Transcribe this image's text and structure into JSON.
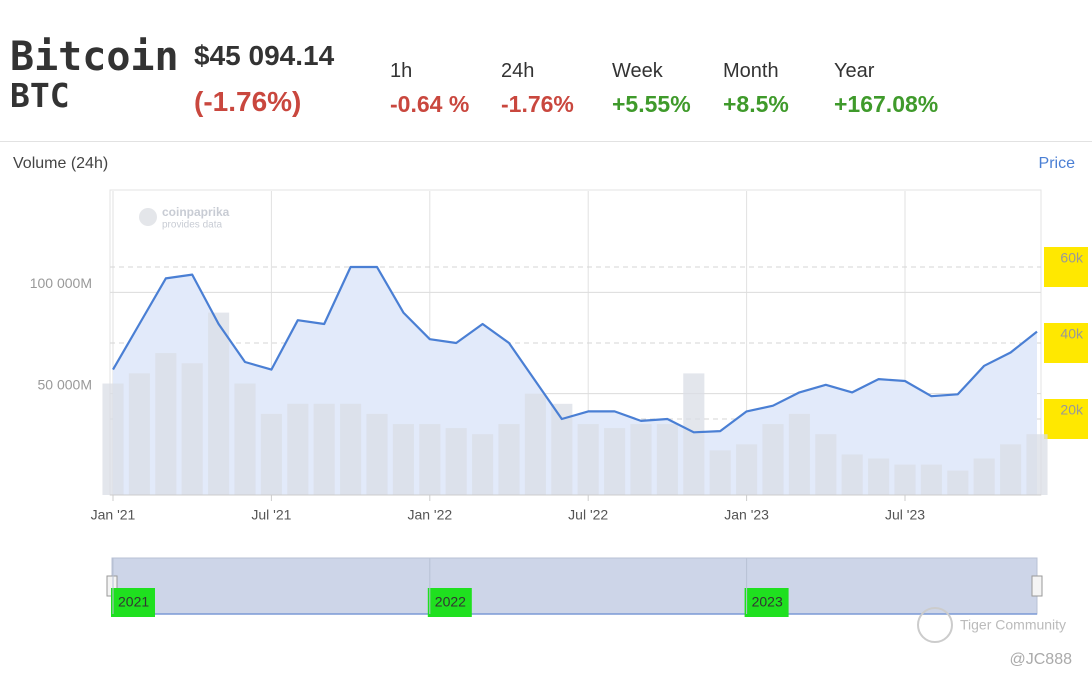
{
  "header": {
    "name": "Bitcoin",
    "symbol": "BTC",
    "price": "$45 094.14",
    "change": "(-1.76%)",
    "periods": [
      {
        "label": "1h",
        "value": "-0.64 %",
        "direction": "down"
      },
      {
        "label": "24h",
        "value": "-1.76%",
        "direction": "down"
      },
      {
        "label": "Week",
        "value": "+5.55%",
        "direction": "up"
      },
      {
        "label": "Month",
        "value": "+8.5%",
        "direction": "up"
      },
      {
        "label": "Year",
        "value": "+167.08%",
        "direction": "up"
      }
    ]
  },
  "chart_data": {
    "type": "line",
    "x": [
      "2021-01",
      "2021-02",
      "2021-03",
      "2021-04",
      "2021-05",
      "2021-06",
      "2021-07",
      "2021-08",
      "2021-09",
      "2021-10",
      "2021-11",
      "2021-12",
      "2022-01",
      "2022-02",
      "2022-03",
      "2022-04",
      "2022-05",
      "2022-06",
      "2022-07",
      "2022-08",
      "2022-09",
      "2022-10",
      "2022-11",
      "2022-12",
      "2023-01",
      "2023-02",
      "2023-03",
      "2023-04",
      "2023-05",
      "2023-06",
      "2023-07",
      "2023-08",
      "2023-09",
      "2023-10",
      "2023-11",
      "2023-12"
    ],
    "series": [
      {
        "name": "Volume (24h)",
        "type": "bar",
        "color": "#d9dde6",
        "values": [
          55000,
          60000,
          70000,
          65000,
          90000,
          55000,
          40000,
          45000,
          45000,
          45000,
          40000,
          35000,
          35000,
          33000,
          30000,
          35000,
          50000,
          45000,
          35000,
          33000,
          35000,
          35000,
          60000,
          22000,
          25000,
          35000,
          40000,
          30000,
          20000,
          18000,
          15000,
          15000,
          12000,
          18000,
          25000,
          30000
        ]
      },
      {
        "name": "Price",
        "type": "line",
        "axis": "y2",
        "color": "#4a7fd4",
        "fill": "#e2eafa",
        "values": [
          33000,
          45000,
          57000,
          58000,
          45000,
          35000,
          33000,
          46000,
          45000,
          60000,
          60000,
          48000,
          41000,
          40000,
          45000,
          40000,
          30000,
          20000,
          22000,
          22000,
          19500,
          20000,
          16500,
          16800,
          22000,
          23500,
          27000,
          29000,
          27000,
          30500,
          30000,
          26000,
          26500,
          34000,
          37500,
          43000
        ]
      }
    ],
    "xticks": [
      {
        "value": "2021-01",
        "label": "Jan '21"
      },
      {
        "value": "2021-07",
        "label": "Jul '21"
      },
      {
        "value": "2022-01",
        "label": "Jan '22"
      },
      {
        "value": "2022-07",
        "label": "Jul '22"
      },
      {
        "value": "2023-01",
        "label": "Jan '23"
      },
      {
        "value": "2023-07",
        "label": "Jul '23"
      }
    ],
    "ylim": [
      0,
      150000
    ],
    "yticks": [
      {
        "value": 50000,
        "label": "50 000M"
      },
      {
        "value": 100000,
        "label": "100 000M"
      }
    ],
    "y2lim": [
      0,
      80000
    ],
    "y2ticks": [
      {
        "value": 20000,
        "label": "20k"
      },
      {
        "value": 40000,
        "label": "40k"
      },
      {
        "value": 60000,
        "label": "60k"
      }
    ],
    "grid": true,
    "navigator_labels": [
      "2021",
      "2022",
      "2023"
    ],
    "watermarks": [
      "coinpaprika",
      "provides data"
    ]
  },
  "overlay": {
    "community": "Tiger Community",
    "author": "@JC888"
  }
}
